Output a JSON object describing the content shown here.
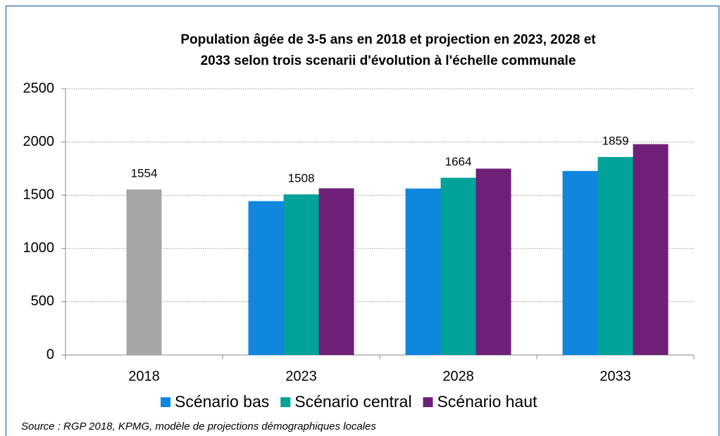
{
  "chart_data": {
    "type": "bar",
    "title": [
      "Population âgée de 3-5 ans en 2018 et projection en 2023, 2028 et",
      "2033 selon trois scenarii d'évolution à l'échelle communale"
    ],
    "categories": [
      "2018",
      "2023",
      "2028",
      "2033"
    ],
    "series": [
      {
        "color": "#a6a6a6",
        "values": [
          1554,
          null,
          null,
          null
        ],
        "show_labels": true
      },
      {
        "name": "Scénario bas",
        "color": "#0f87dc",
        "values": [
          null,
          1445,
          1563,
          1728
        ],
        "show_labels": false
      },
      {
        "name": "Scénario central",
        "color": "#00a29a",
        "values": [
          null,
          1508,
          1664,
          1859
        ],
        "show_labels": true
      },
      {
        "name": "Scénario haut",
        "color": "#6e2079",
        "values": [
          null,
          1565,
          1750,
          1980
        ],
        "show_labels": false
      }
    ],
    "ylim": [
      0,
      2500
    ],
    "yticks": [
      0,
      500,
      1000,
      1500,
      2000,
      2500
    ],
    "grid": true,
    "legend": "bottom",
    "source": "Source : RGP 2018, KPMG, modèle de projections démographiques locales"
  }
}
